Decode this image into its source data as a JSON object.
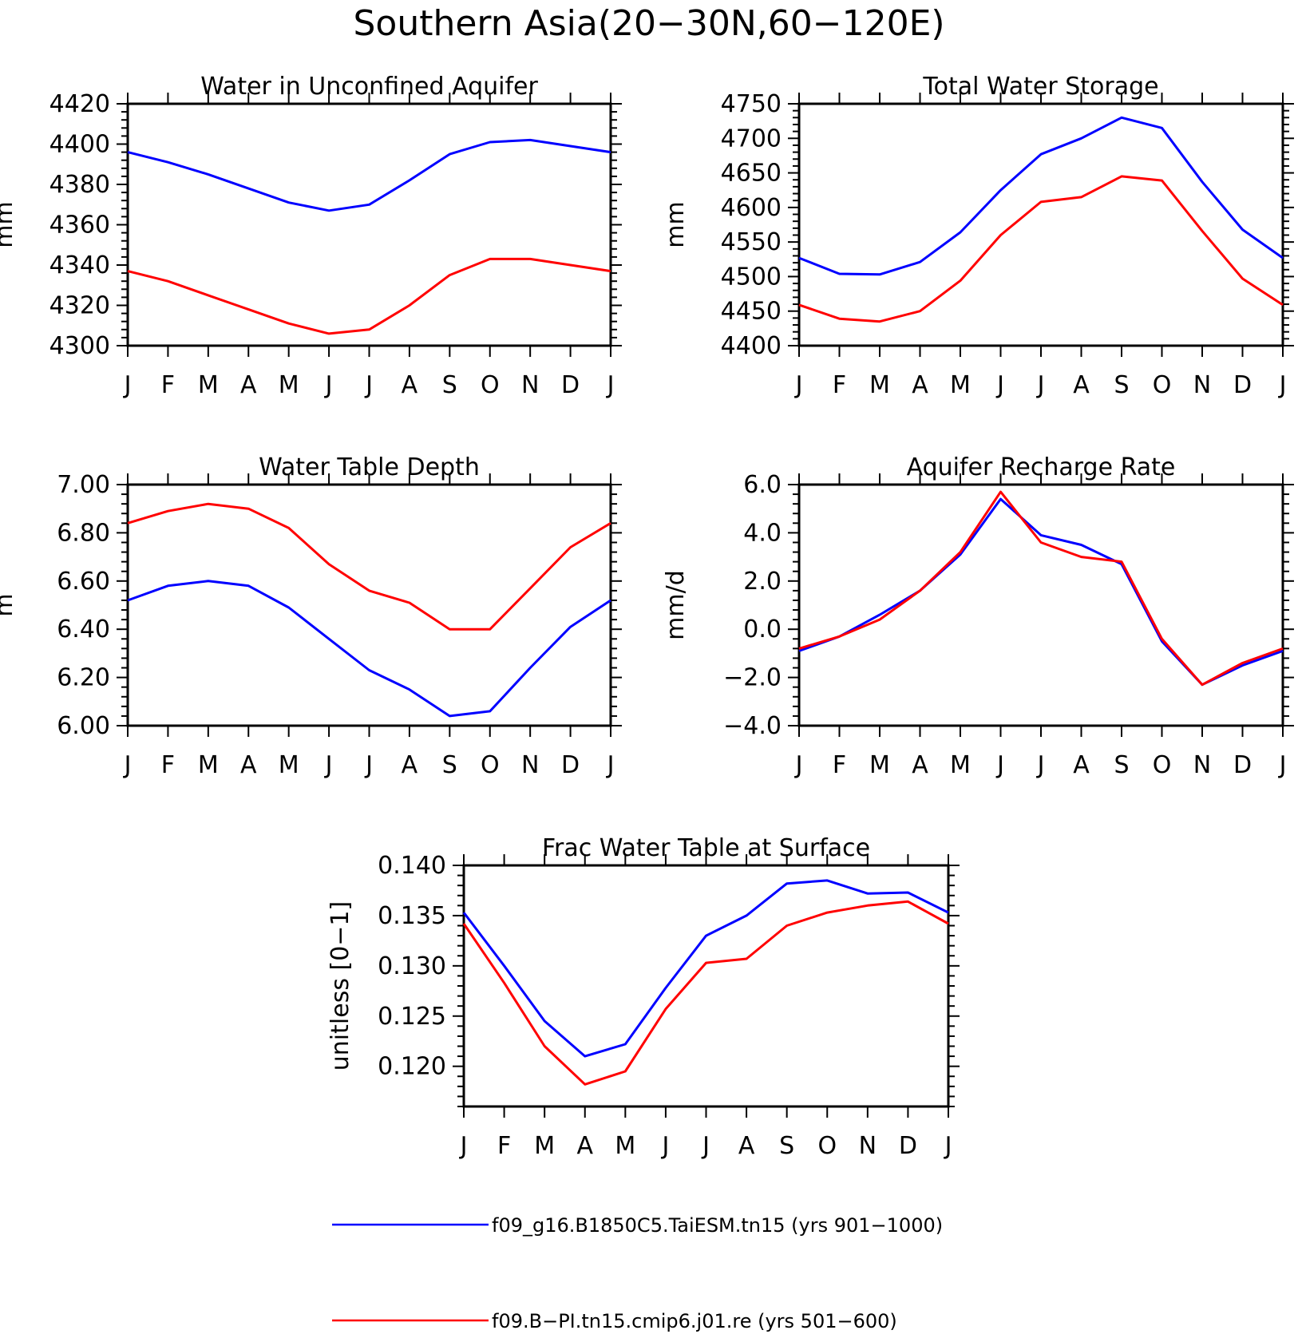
{
  "title": "Southern Asia(20−30N,60−120E)",
  "months": [
    "J",
    "F",
    "M",
    "A",
    "M",
    "J",
    "J",
    "A",
    "S",
    "O",
    "N",
    "D",
    "J"
  ],
  "colors": {
    "blue": "#0000ff",
    "red": "#ff0000",
    "axis": "#000000"
  },
  "legend": [
    {
      "label": "f09_g16.B1850C5.TaiESM.tn15 (yrs 901−1000)",
      "color": "#0000ff"
    },
    {
      "label": "f09.B−PI.tn15.cmip6.j01.re (yrs 501−600)",
      "color": "#ff0000"
    }
  ],
  "chart_data": [
    {
      "type": "line",
      "title": "Water in Unconfined Aquifer",
      "ylabel": "mm",
      "ylim": [
        4300,
        4420
      ],
      "yticks": [
        "4300",
        "4320",
        "4340",
        "4360",
        "4380",
        "4400",
        "4420"
      ],
      "x": [
        "J",
        "F",
        "M",
        "A",
        "M",
        "J",
        "J",
        "A",
        "S",
        "O",
        "N",
        "D",
        "J"
      ],
      "series": [
        {
          "name": "f09_g16.B1850C5.TaiESM.tn15 (yrs 901−1000)",
          "color": "#0000ff",
          "values": [
            4396,
            4391,
            4385,
            4378,
            4371,
            4367,
            4370,
            4382,
            4395,
            4401,
            4402,
            4399,
            4396
          ]
        },
        {
          "name": "f09.B−PI.tn15.cmip6.j01.re (yrs 501−600)",
          "color": "#ff0000",
          "values": [
            4337,
            4332,
            4325,
            4318,
            4311,
            4306,
            4308,
            4320,
            4335,
            4343,
            4343,
            4340,
            4337
          ]
        }
      ]
    },
    {
      "type": "line",
      "title": "Total Water Storage",
      "ylabel": "mm",
      "ylim": [
        4400,
        4750
      ],
      "yticks": [
        "4400",
        "4450",
        "4500",
        "4550",
        "4600",
        "4650",
        "4700",
        "4750"
      ],
      "x": [
        "J",
        "F",
        "M",
        "A",
        "M",
        "J",
        "J",
        "A",
        "S",
        "O",
        "N",
        "D",
        "J"
      ],
      "series": [
        {
          "name": "f09_g16.B1850C5.TaiESM.tn15 (yrs 901−1000)",
          "color": "#0000ff",
          "values": [
            4527,
            4504,
            4503,
            4521,
            4564,
            4625,
            4677,
            4700,
            4730,
            4715,
            4637,
            4568,
            4527
          ]
        },
        {
          "name": "f09.B−PI.tn15.cmip6.j01.re (yrs 501−600)",
          "color": "#ff0000",
          "values": [
            4459,
            4439,
            4435,
            4450,
            4494,
            4560,
            4608,
            4615,
            4645,
            4639,
            4566,
            4497,
            4459
          ]
        }
      ]
    },
    {
      "type": "line",
      "title": "Water Table Depth",
      "ylabel": "m",
      "ylim": [
        6.0,
        7.0
      ],
      "yticks": [
        "6.00",
        "6.20",
        "6.40",
        "6.60",
        "6.80",
        "7.00"
      ],
      "x": [
        "J",
        "F",
        "M",
        "A",
        "M",
        "J",
        "J",
        "A",
        "S",
        "O",
        "N",
        "D",
        "J"
      ],
      "series": [
        {
          "name": "f09_g16.B1850C5.TaiESM.tn15 (yrs 901−1000)",
          "color": "#0000ff",
          "values": [
            6.52,
            6.58,
            6.6,
            6.58,
            6.49,
            6.36,
            6.23,
            6.15,
            6.04,
            6.06,
            6.24,
            6.41,
            6.52
          ]
        },
        {
          "name": "f09.B−PI.tn15.cmip6.j01.re (yrs 501−600)",
          "color": "#ff0000",
          "values": [
            6.84,
            6.89,
            6.92,
            6.9,
            6.82,
            6.67,
            6.56,
            6.51,
            6.4,
            6.4,
            6.57,
            6.74,
            6.84
          ]
        }
      ]
    },
    {
      "type": "line",
      "title": "Aquifer Recharge Rate",
      "ylabel": "mm/d",
      "ylim": [
        -4.0,
        6.0
      ],
      "yticks": [
        "−4.0",
        "−2.0",
        "0.0",
        "2.0",
        "4.0",
        "6.0"
      ],
      "x": [
        "J",
        "F",
        "M",
        "A",
        "M",
        "J",
        "J",
        "A",
        "S",
        "O",
        "N",
        "D",
        "J"
      ],
      "series": [
        {
          "name": "f09_g16.B1850C5.TaiESM.tn15 (yrs 901−1000)",
          "color": "#0000ff",
          "values": [
            -0.9,
            -0.3,
            0.6,
            1.6,
            3.1,
            5.4,
            3.9,
            3.5,
            2.7,
            -0.5,
            -2.3,
            -1.5,
            -0.9
          ]
        },
        {
          "name": "f09.B−PI.tn15.cmip6.j01.re (yrs 501−600)",
          "color": "#ff0000",
          "values": [
            -0.8,
            -0.3,
            0.4,
            1.6,
            3.2,
            5.7,
            3.6,
            3.0,
            2.8,
            -0.4,
            -2.3,
            -1.4,
            -0.8
          ]
        }
      ]
    },
    {
      "type": "line",
      "title": "Frac Water Table at Surface",
      "ylabel": "unitless [0−1]",
      "ylim": [
        0.116,
        0.14
      ],
      "yticks": [
        "0.120",
        "0.125",
        "0.130",
        "0.135",
        "0.140"
      ],
      "x": [
        "J",
        "F",
        "M",
        "A",
        "M",
        "J",
        "J",
        "A",
        "S",
        "O",
        "N",
        "D",
        "J"
      ],
      "series": [
        {
          "name": "f09_g16.B1850C5.TaiESM.tn15 (yrs 901−1000)",
          "color": "#0000ff",
          "values": [
            0.1353,
            0.13,
            0.1245,
            0.121,
            0.1222,
            0.1278,
            0.133,
            0.135,
            0.1382,
            0.1385,
            0.1372,
            0.1373,
            0.1353
          ]
        },
        {
          "name": "f09.B−PI.tn15.cmip6.j01.re (yrs 501−600)",
          "color": "#ff0000",
          "values": [
            0.1342,
            0.1283,
            0.122,
            0.1182,
            0.1195,
            0.1257,
            0.1303,
            0.1307,
            0.134,
            0.1353,
            0.136,
            0.1364,
            0.1342
          ]
        }
      ]
    }
  ]
}
